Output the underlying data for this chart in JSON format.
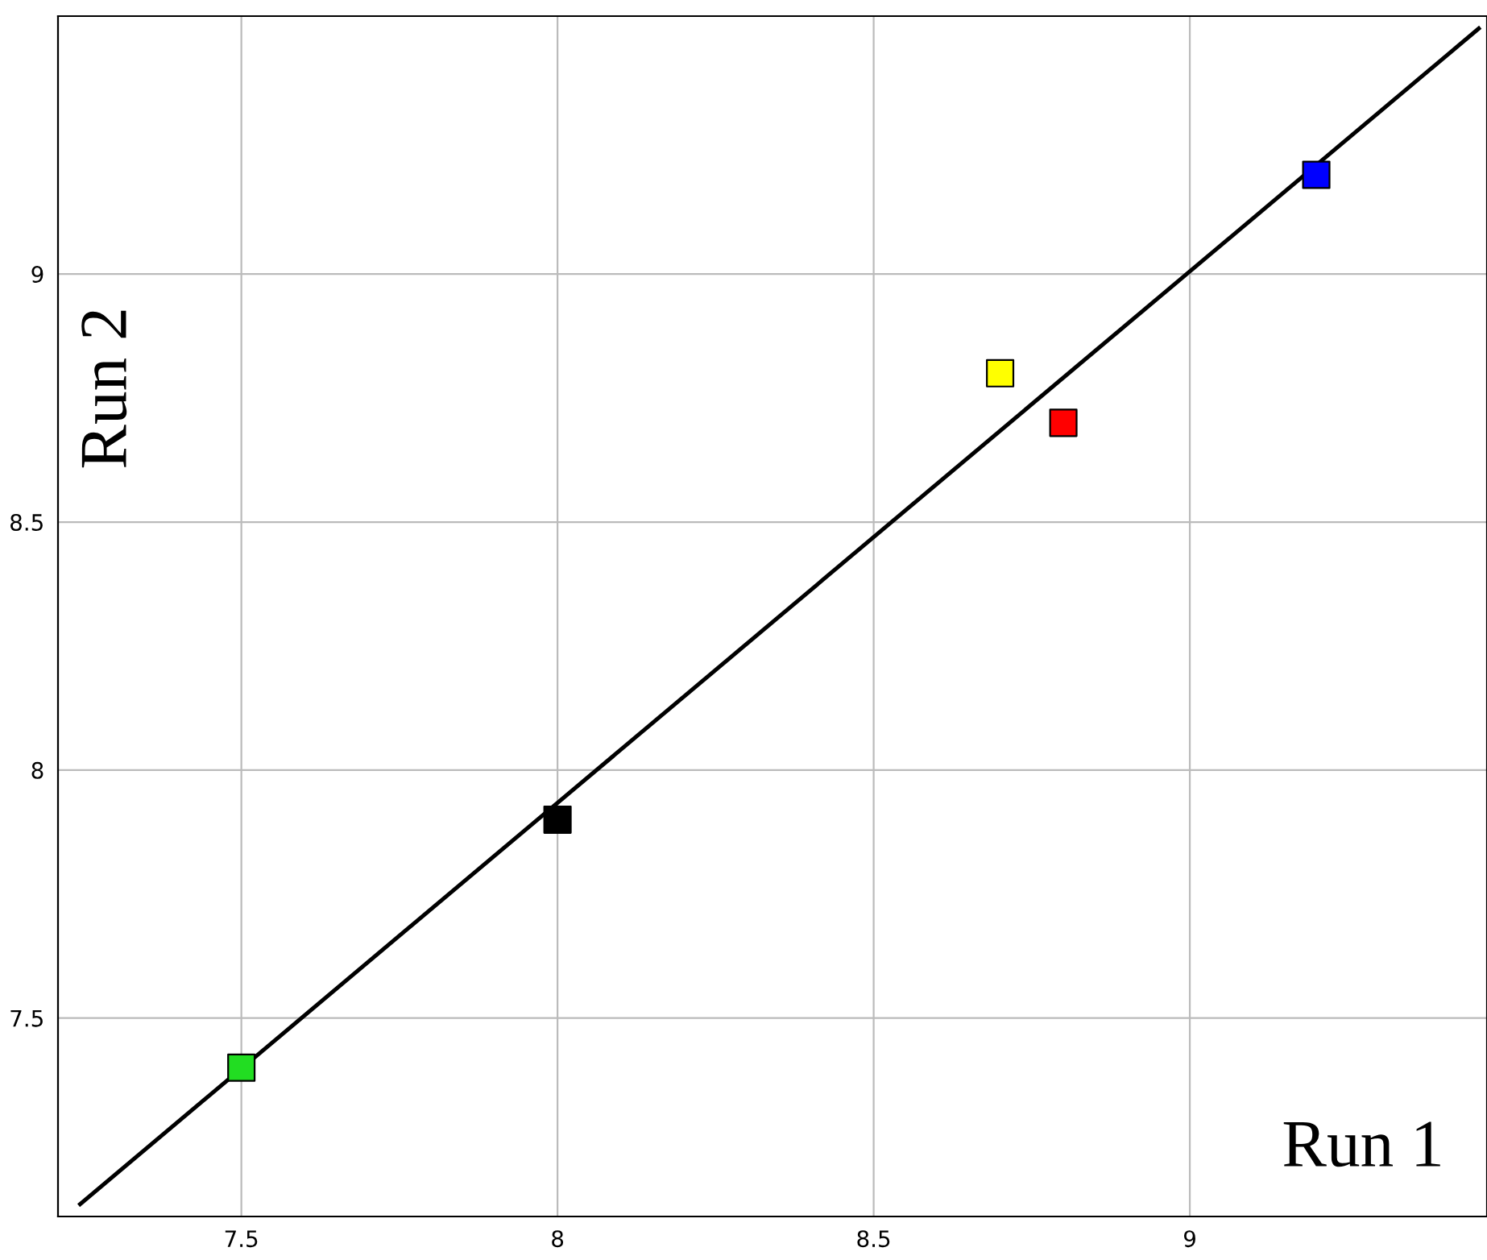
{
  "chart_data": {
    "type": "scatter",
    "xlabel": "Run 1",
    "ylabel": "Run 2",
    "xlim": [
      7.21,
      9.47
    ],
    "ylim": [
      7.1,
      9.52
    ],
    "xticks": [
      7.5,
      8,
      8.5,
      9
    ],
    "yticks": [
      7.5,
      8,
      8.5,
      9
    ],
    "grid": true,
    "series": [
      {
        "marker": "square",
        "x": [
          7.5,
          8,
          8.7,
          8.8,
          9.2
        ],
        "values": [
          7.4,
          7.9,
          8.8,
          8.7,
          9.2
        ],
        "colors": [
          "#22dd22",
          "#000000",
          "#ffff00",
          "#ff0000",
          "#0000ff"
        ]
      },
      {
        "type": "line",
        "x": [
          7.245,
          9.457
        ],
        "values": [
          7.125,
          9.495
        ],
        "color": "#000000",
        "line_style": "solid",
        "marker": "none"
      }
    ]
  }
}
